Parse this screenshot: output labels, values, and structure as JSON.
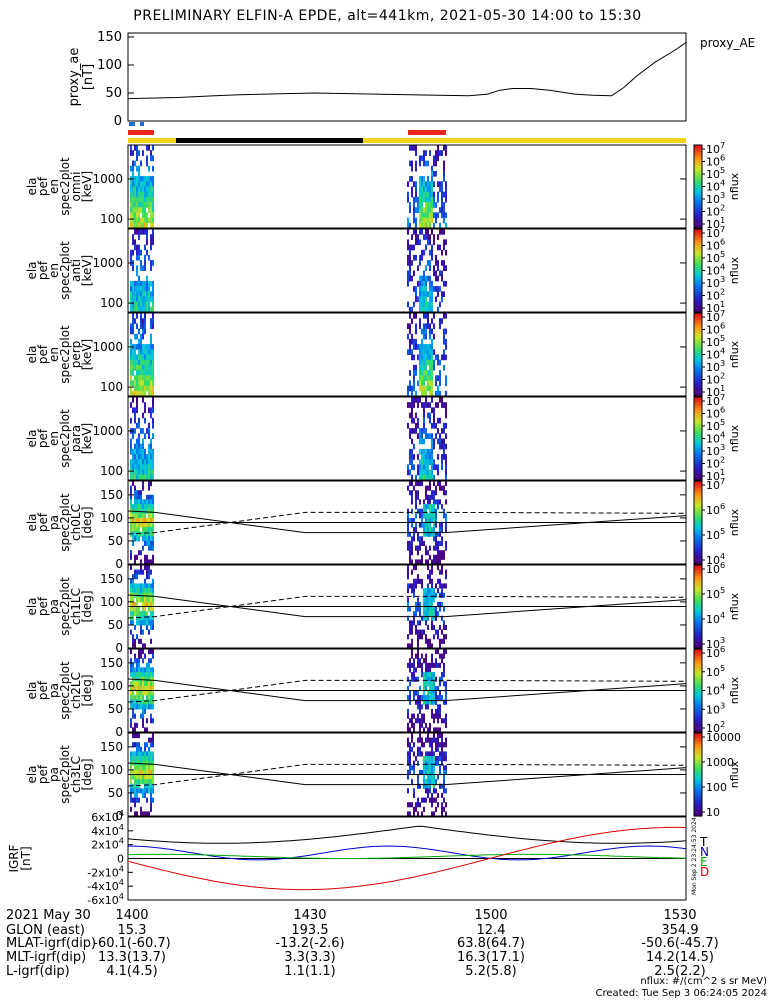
{
  "title": "PRELIMINARY ELFIN-A EPDE, alt=441km, 2021-05-30 14:00 to 15:30",
  "chart_data": [
    {
      "type": "line",
      "panel": "proxy_ae",
      "ylabel": "proxy_ae [nT]",
      "legend": "proxy_AE",
      "ylim": [
        0,
        150
      ],
      "yticks": [
        "0",
        "50",
        "100",
        "150"
      ],
      "xlim_min": [
        0,
        90
      ],
      "x": [
        0,
        8,
        14,
        18,
        30,
        40,
        50,
        55,
        58,
        60,
        62,
        65,
        68,
        72,
        75,
        78,
        80,
        82,
        85,
        88,
        90
      ],
      "values": [
        40,
        42,
        45,
        47,
        50,
        48,
        46,
        45,
        48,
        55,
        58,
        58,
        55,
        48,
        46,
        45,
        60,
        80,
        105,
        125,
        140
      ]
    },
    {
      "type": "heatmap",
      "panel": "ela pef en spec2plot omni [keV]",
      "ylabel": "ela pef en spec2plot omni [keV]",
      "y_scale": "log",
      "ylim": [
        60,
        7000
      ],
      "yticks": [
        "100",
        "1000"
      ],
      "colorbar_label": "nflux",
      "colorbar_ticks": [
        "10^1",
        "10^2",
        "10^3",
        "10^4",
        "10^5",
        "10^6",
        "10^7"
      ]
    },
    {
      "type": "heatmap",
      "panel": "ela pef en spec2plot anti [keV]",
      "ylabel": "ela pef en spec2plot anti [keV]",
      "y_scale": "log",
      "ylim": [
        60,
        7000
      ],
      "yticks": [
        "100",
        "1000"
      ],
      "colorbar_label": "nflux",
      "colorbar_ticks": [
        "10^1",
        "10^2",
        "10^3",
        "10^4",
        "10^5",
        "10^6",
        "10^7"
      ]
    },
    {
      "type": "heatmap",
      "panel": "ela pef en spec2plot perp [keV]",
      "ylabel": "ela pef en spec2plot perp [keV]",
      "y_scale": "log",
      "ylim": [
        60,
        7000
      ],
      "yticks": [
        "100",
        "1000"
      ],
      "colorbar_label": "nflux",
      "colorbar_ticks": [
        "10^1",
        "10^2",
        "10^3",
        "10^4",
        "10^5",
        "10^6",
        "10^7"
      ]
    },
    {
      "type": "heatmap",
      "panel": "ela pef en spec2plot para [keV]",
      "ylabel": "ela pef en spec2plot para [keV]",
      "y_scale": "log",
      "ylim": [
        60,
        7000
      ],
      "yticks": [
        "100",
        "1000"
      ],
      "colorbar_label": "nflux",
      "colorbar_ticks": [
        "10^1",
        "10^2",
        "10^3",
        "10^4",
        "10^5",
        "10^6",
        "10^7"
      ]
    },
    {
      "type": "heatmap",
      "panel": "ela pef pa spec2plot ch0LC [deg]",
      "ylabel": "ela pef pa spec2plot ch0LC [deg]",
      "ylim": [
        0,
        180
      ],
      "yticks": [
        "0",
        "50",
        "100",
        "150"
      ],
      "colorbar_label": "nflux",
      "colorbar_ticks": [
        "10^4",
        "10^5",
        "10^6",
        "10^7"
      ]
    },
    {
      "type": "heatmap",
      "panel": "ela pef pa spec2plot ch1LC [deg]",
      "ylabel": "ela pef pa spec2plot ch1LC [deg]",
      "ylim": [
        0,
        180
      ],
      "yticks": [
        "0",
        "50",
        "100",
        "150"
      ],
      "colorbar_label": "nflux",
      "colorbar_ticks": [
        "10^3",
        "10^4",
        "10^5",
        "10^6"
      ]
    },
    {
      "type": "heatmap",
      "panel": "ela pef pa spec2plot ch2LC [deg]",
      "ylabel": "ela pef pa spec2plot ch2LC [deg]",
      "ylim": [
        0,
        180
      ],
      "yticks": [
        "0",
        "50",
        "100",
        "150"
      ],
      "colorbar_label": "nflux",
      "colorbar_ticks": [
        "10^2",
        "10^3",
        "10^4",
        "10^5",
        "10^6"
      ]
    },
    {
      "type": "heatmap",
      "panel": "ela pef pa spec2plot ch3LC [deg]",
      "ylabel": "ela pef pa spec2plot ch3LC [deg]",
      "ylim": [
        0,
        180
      ],
      "yticks": [
        "0",
        "50",
        "100",
        "150"
      ],
      "colorbar_label": "nflux",
      "colorbar_ticks": [
        "10",
        "100",
        "1000",
        "10000"
      ]
    },
    {
      "type": "line",
      "panel": "IGRF [nT]",
      "ylabel": "IGRF [nT]",
      "ylim": [
        -60000,
        60000
      ],
      "yticks": [
        "-6x10^4",
        "-4x10^4",
        "-2x10^4",
        "0",
        "2x10^4",
        "4x10^4",
        "6x10^4"
      ],
      "series": [
        {
          "name": "T",
          "color": "#000000"
        },
        {
          "name": "N",
          "color": "#0000cc"
        },
        {
          "name": "E",
          "color": "#00aa00"
        },
        {
          "name": "D",
          "color": "#dd0000"
        }
      ]
    }
  ],
  "labels": {
    "proxy_ae": [
      "proxy_ae",
      "[nT]"
    ],
    "omni": [
      "ela",
      "pef",
      "en",
      "spec2plot",
      "omni",
      "[keV]"
    ],
    "anti": [
      "ela",
      "pef",
      "en",
      "spec2plot",
      "anti",
      "[keV]"
    ],
    "perp": [
      "ela",
      "pef",
      "en",
      "spec2plot",
      "perp",
      "[keV]"
    ],
    "para": [
      "ela",
      "pef",
      "en",
      "spec2plot",
      "para",
      "[keV]"
    ],
    "ch0": [
      "ela",
      "pef",
      "pa",
      "spec2plot",
      "ch0LC",
      "[deg]"
    ],
    "ch1": [
      "ela",
      "pef",
      "pa",
      "spec2plot",
      "ch1LC",
      "[deg]"
    ],
    "ch2": [
      "ela",
      "pef",
      "pa",
      "spec2plot",
      "ch2LC",
      "[deg]"
    ],
    "ch3": [
      "ela",
      "pef",
      "pa",
      "spec2plot",
      "ch3LC",
      "[deg]"
    ],
    "igrf": [
      "IGRF",
      "[nT]"
    ]
  },
  "legend_proxy": "proxy_AE",
  "colors": {
    "status_red": "#e8271e",
    "status_black": "#000000",
    "status_yellow": "#f4d21a",
    "status_blue": "#1f6fd6"
  },
  "footer": {
    "rows": [
      {
        "label": "2021 May 30",
        "vals": [
          "1400",
          "1430",
          "1500",
          "1530"
        ]
      },
      {
        "label": "GLON (east)",
        "vals": [
          "15.3",
          "193.5",
          "12.4",
          "354.9"
        ]
      },
      {
        "label": "MLAT-igrf(dip)",
        "vals": [
          "-60.1(-60.7)",
          "-13.2(-2.6)",
          "63.8(64.7)",
          "-50.6(-45.7)"
        ]
      },
      {
        "label": "MLT-igrf(dip)",
        "vals": [
          "13.3(13.7)",
          "3.3(3.3)",
          "16.3(17.1)",
          "14.2(14.5)"
        ]
      },
      {
        "label": "L-igrf(dip)",
        "vals": [
          "4.1(4.5)",
          "1.1(1.1)",
          "5.2(5.8)",
          "2.5(2.2)"
        ]
      }
    ],
    "nflux_unit": "nflux: #/(cm^2 s sr MeV)",
    "created": "Created: Tue Sep  3 06:24:05 2024",
    "stamp_left": "Mon Sep  2 23:24:53 2024",
    "stamp_right": "Created: Tue Sep  3 06:24:05 2024"
  }
}
